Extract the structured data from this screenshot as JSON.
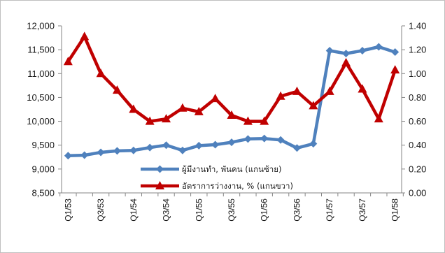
{
  "chart_data": {
    "type": "line",
    "x": [
      "Q1/53",
      "Q2/53",
      "Q3/53",
      "Q4/53",
      "Q1/54",
      "Q2/54",
      "Q3/54",
      "Q4/54",
      "Q1/55",
      "Q2/55",
      "Q3/55",
      "Q4/55",
      "Q1/56",
      "Q2/56",
      "Q3/56",
      "Q4/56",
      "Q1/57",
      "Q2/57",
      "Q3/57",
      "Q4/57",
      "Q1/58"
    ],
    "x_tick_labels": [
      "Q1/53",
      "Q3/53",
      "Q1/54",
      "Q3/54",
      "Q1/55",
      "Q3/55",
      "Q1/56",
      "Q3/56",
      "Q1/57",
      "Q3/57",
      "Q1/58"
    ],
    "y_left": {
      "range": [
        8500,
        12000
      ],
      "ticks": [
        "8,500",
        "9,000",
        "9,500",
        "10,000",
        "10,500",
        "11,000",
        "11,500",
        "12,000"
      ]
    },
    "y_right": {
      "range": [
        0,
        1.4
      ],
      "ticks": [
        "0.00",
        "0.20",
        "0.40",
        "0.60",
        "0.80",
        "1.00",
        "1.20",
        "1.40"
      ]
    },
    "series": [
      {
        "name": "ผู้มีงานทำ, พันคน (แกนซ้าย)",
        "axis": "left",
        "color": "#4f81bd",
        "marker": "diamond",
        "values": [
          9280,
          9290,
          9350,
          9380,
          9390,
          9450,
          9500,
          9390,
          9490,
          9510,
          9560,
          9630,
          9640,
          9610,
          9440,
          9530,
          11480,
          11420,
          11480,
          11560,
          11450
        ]
      },
      {
        "name": "อัตราการว่างงาน, % (แกนขวา)",
        "axis": "right",
        "color": "#c00000",
        "marker": "triangle",
        "values": [
          1.1,
          1.31,
          1.0,
          0.86,
          0.7,
          0.6,
          0.62,
          0.71,
          0.68,
          0.79,
          0.65,
          0.6,
          0.6,
          0.81,
          0.85,
          0.73,
          0.85,
          1.09,
          0.87,
          0.62,
          1.03
        ]
      }
    ],
    "legend_position": "lower-middle",
    "grid": false
  }
}
